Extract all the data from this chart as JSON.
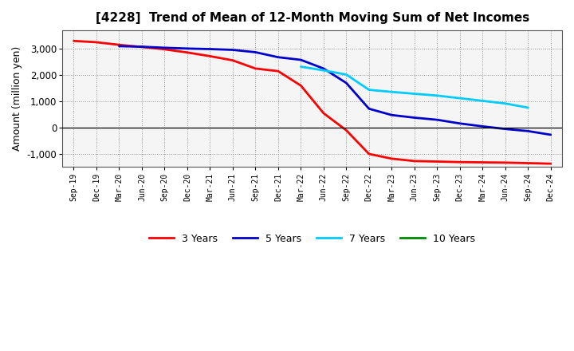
{
  "title": "[4228]  Trend of Mean of 12-Month Moving Sum of Net Incomes",
  "ylabel": "Amount (million yen)",
  "ylim": [
    -1500,
    3700
  ],
  "yticks": [
    -1000,
    0,
    1000,
    2000,
    3000
  ],
  "legend": [
    "3 Years",
    "5 Years",
    "7 Years",
    "10 Years"
  ],
  "colors": [
    "#ff0000",
    "#0000cc",
    "#00ccff",
    "#008800"
  ],
  "line_width": 2.0,
  "x_labels": [
    "Sep-19",
    "Dec-19",
    "Mar-20",
    "Jun-20",
    "Sep-20",
    "Dec-20",
    "Mar-21",
    "Jun-21",
    "Sep-21",
    "Dec-21",
    "Mar-22",
    "Jun-22",
    "Sep-22",
    "Dec-22",
    "Mar-23",
    "Jun-23",
    "Sep-23",
    "Dec-23",
    "Mar-24",
    "Jun-24",
    "Sep-24",
    "Dec-24"
  ],
  "series_3y": [
    3300,
    3250,
    3150,
    3070,
    2980,
    2860,
    2720,
    2560,
    2250,
    2150,
    1600,
    550,
    -100,
    -1000,
    -1180,
    -1270,
    -1290,
    -1310,
    -1320,
    -1330,
    -1350,
    -1370
  ],
  "series_5y": [
    null,
    null,
    3100,
    3080,
    3040,
    3010,
    2990,
    2960,
    2870,
    2680,
    2580,
    2250,
    1700,
    720,
    480,
    380,
    300,
    160,
    50,
    -50,
    -130,
    -270
  ],
  "series_7y": [
    null,
    null,
    null,
    null,
    null,
    null,
    null,
    null,
    null,
    null,
    2320,
    2180,
    2020,
    1440,
    1360,
    1290,
    1220,
    1120,
    1020,
    920,
    760,
    null
  ],
  "series_10y": [
    null,
    null,
    null,
    null,
    null,
    null,
    null,
    null,
    null,
    null,
    null,
    null,
    null,
    null,
    null,
    null,
    null,
    null,
    null,
    null,
    null,
    null
  ]
}
